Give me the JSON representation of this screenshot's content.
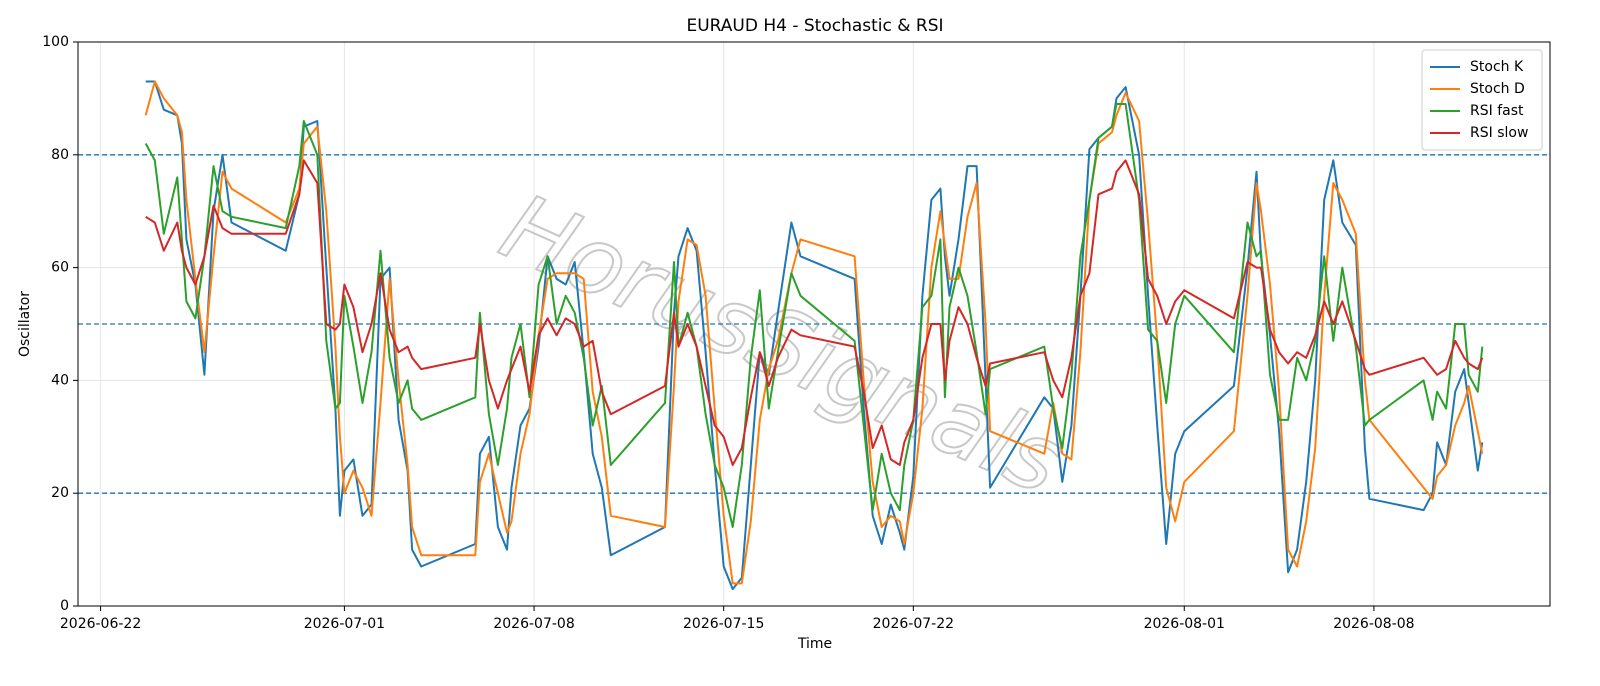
{
  "chart_data": {
    "type": "line",
    "title": "EURAUD H4 - Stochastic & RSI",
    "x_label": "Time",
    "y_label": "Oscillator",
    "watermark": "HorusSignals",
    "x": [
      "2026-06-23T16:00",
      "2026-06-24T00:00",
      "2026-06-24T08:00",
      "2026-06-24T20:00",
      "2026-06-25T00:00",
      "2026-06-25T04:00",
      "2026-06-25T12:00",
      "2026-06-25T20:00",
      "2026-06-26T04:00",
      "2026-06-26T12:00",
      "2026-06-26T20:00",
      "2026-06-28T20:00",
      "2026-06-29T08:00",
      "2026-06-29T12:00",
      "2026-06-30T00:00",
      "2026-06-30T08:00",
      "2026-06-30T16:00",
      "2026-06-30T20:00",
      "2026-07-01T00:00",
      "2026-07-01T08:00",
      "2026-07-01T16:00",
      "2026-07-02T00:00",
      "2026-07-02T08:00",
      "2026-07-02T16:00",
      "2026-07-03T00:00",
      "2026-07-03T08:00",
      "2026-07-03T12:00",
      "2026-07-03T20:00",
      "2026-07-05T20:00",
      "2026-07-06T00:00",
      "2026-07-06T08:00",
      "2026-07-06T16:00",
      "2026-07-07T00:00",
      "2026-07-07T04:00",
      "2026-07-07T12:00",
      "2026-07-07T20:00",
      "2026-07-08T04:00",
      "2026-07-08T12:00",
      "2026-07-08T20:00",
      "2026-07-09T04:00",
      "2026-07-09T12:00",
      "2026-07-09T20:00",
      "2026-07-10T04:00",
      "2026-07-10T12:00",
      "2026-07-10T20:00",
      "2026-07-12T20:00",
      "2026-07-13T04:00",
      "2026-07-13T08:00",
      "2026-07-13T16:00",
      "2026-07-14T00:00",
      "2026-07-14T08:00",
      "2026-07-14T16:00",
      "2026-07-15T00:00",
      "2026-07-15T08:00",
      "2026-07-15T16:00",
      "2026-07-16T00:00",
      "2026-07-16T08:00",
      "2026-07-16T16:00",
      "2026-07-17T00:00",
      "2026-07-17T12:00",
      "2026-07-17T20:00",
      "2026-07-19T20:00",
      "2026-07-20T04:00",
      "2026-07-20T12:00",
      "2026-07-20T20:00",
      "2026-07-21T04:00",
      "2026-07-21T12:00",
      "2026-07-21T16:00",
      "2026-07-22T00:00",
      "2026-07-22T08:00",
      "2026-07-22T16:00",
      "2026-07-23T00:00",
      "2026-07-23T04:00",
      "2026-07-23T08:00",
      "2026-07-23T16:00",
      "2026-07-24T00:00",
      "2026-07-24T08:00",
      "2026-07-24T16:00",
      "2026-07-24T20:00",
      "2026-07-26T20:00",
      "2026-07-27T04:00",
      "2026-07-27T12:00",
      "2026-07-27T20:00",
      "2026-07-28T04:00",
      "2026-07-28T12:00",
      "2026-07-28T20:00",
      "2026-07-29T08:00",
      "2026-07-29T12:00",
      "2026-07-29T20:00",
      "2026-07-30T08:00",
      "2026-07-30T16:00",
      "2026-07-31T00:00",
      "2026-07-31T08:00",
      "2026-07-31T16:00",
      "2026-08-01T00:00",
      "2026-08-02T20:00",
      "2026-08-03T08:00",
      "2026-08-03T16:00",
      "2026-08-03T20:00",
      "2026-08-04T04:00",
      "2026-08-04T12:00",
      "2026-08-04T20:00",
      "2026-08-05T04:00",
      "2026-08-05T12:00",
      "2026-08-05T20:00",
      "2026-08-06T04:00",
      "2026-08-06T12:00",
      "2026-08-06T20:00",
      "2026-08-07T08:00",
      "2026-08-07T16:00",
      "2026-08-07T20:00",
      "2026-08-09T20:00",
      "2026-08-10T04:00",
      "2026-08-10T08:00",
      "2026-08-10T16:00",
      "2026-08-11T00:00",
      "2026-08-11T08:00",
      "2026-08-11T12:00",
      "2026-08-11T20:00",
      "2026-08-12T00:00"
    ],
    "series": [
      {
        "name": "Stoch K",
        "color": "#1f77b4",
        "values": [
          93,
          93,
          88,
          87,
          82,
          65,
          57,
          41,
          70,
          80,
          68,
          63,
          73,
          85,
          86,
          60,
          35,
          16,
          24,
          26,
          16,
          18,
          58,
          60,
          33,
          24,
          10,
          7,
          11,
          27,
          30,
          14,
          10,
          21,
          32,
          35,
          46,
          62,
          58,
          57,
          61,
          45,
          27,
          21,
          9,
          14,
          52,
          62,
          67,
          63,
          45,
          25,
          7,
          3,
          5,
          25,
          45,
          41,
          52,
          68,
          62,
          58,
          35,
          16,
          11,
          18,
          13,
          10,
          23,
          55,
          72,
          74,
          62,
          55,
          65,
          78,
          78,
          40,
          21,
          37,
          35,
          22,
          32,
          55,
          81,
          83,
          85,
          90,
          92,
          80,
          55,
          32,
          11,
          27,
          31,
          39,
          60,
          77,
          62,
          48,
          31,
          6,
          10,
          22,
          40,
          72,
          79,
          68,
          64,
          28,
          19,
          17,
          20,
          29,
          25,
          38,
          42,
          36,
          24,
          29
        ]
      },
      {
        "name": "Stoch D",
        "color": "#ff7f0e",
        "values": [
          87,
          93,
          90,
          87,
          84,
          72,
          58,
          45,
          62,
          77,
          74,
          68,
          74,
          82,
          85,
          70,
          46,
          30,
          20,
          24,
          21,
          16,
          36,
          58,
          40,
          25,
          14,
          9,
          9,
          22,
          27,
          20,
          13,
          15,
          27,
          34,
          48,
          58,
          59,
          59,
          59,
          58,
          38,
          30,
          16,
          14,
          39,
          54,
          65,
          64,
          55,
          35,
          16,
          4,
          4,
          15,
          33,
          42,
          47,
          59,
          65,
          62,
          40,
          22,
          14,
          16,
          15,
          11,
          20,
          35,
          60,
          70,
          64,
          58,
          58,
          69,
          75,
          50,
          31,
          27,
          36,
          27,
          26,
          45,
          72,
          82,
          84,
          87,
          91,
          86,
          68,
          47,
          21,
          15,
          22,
          31,
          55,
          75,
          70,
          57,
          38,
          10,
          7,
          15,
          28,
          55,
          75,
          72,
          66,
          40,
          33,
          21,
          19,
          23,
          25,
          32,
          36,
          39,
          31,
          27
        ]
      },
      {
        "name": "RSI fast",
        "color": "#2ca02c",
        "values": [
          82,
          79,
          66,
          76,
          65,
          54,
          51,
          62,
          78,
          70,
          69,
          67,
          78,
          86,
          80,
          47,
          35,
          36,
          55,
          46,
          36,
          45,
          63,
          44,
          36,
          40,
          35,
          33,
          37,
          52,
          34,
          25,
          35,
          44,
          50,
          37,
          57,
          62,
          50,
          55,
          52,
          44,
          32,
          39,
          25,
          36,
          61,
          46,
          52,
          46,
          34,
          25,
          21,
          14,
          25,
          44,
          56,
          35,
          45,
          59,
          55,
          47,
          32,
          17,
          27,
          20,
          17,
          25,
          33,
          53,
          55,
          65,
          37,
          53,
          60,
          55,
          45,
          34,
          42,
          46,
          35,
          28,
          41,
          62,
          72,
          83,
          85,
          89,
          89,
          72,
          49,
          47,
          36,
          50,
          55,
          45,
          68,
          62,
          63,
          41,
          33,
          33,
          44,
          40,
          47,
          62,
          47,
          60,
          46,
          32,
          33,
          40,
          33,
          38,
          35,
          50,
          50,
          41,
          38,
          46
        ]
      },
      {
        "name": "RSI slow",
        "color": "#d62728",
        "values": [
          69,
          68,
          63,
          68,
          63,
          60,
          57,
          62,
          71,
          67,
          66,
          66,
          73,
          79,
          75,
          50,
          49,
          50,
          57,
          53,
          45,
          50,
          59,
          49,
          45,
          46,
          44,
          42,
          44,
          50,
          40,
          35,
          40,
          42,
          46,
          38,
          48,
          51,
          48,
          51,
          50,
          46,
          47,
          38,
          34,
          39,
          52,
          46,
          50,
          46,
          39,
          32,
          30,
          25,
          28,
          37,
          45,
          39,
          44,
          49,
          48,
          46,
          38,
          28,
          32,
          26,
          25,
          29,
          33,
          44,
          50,
          50,
          40,
          47,
          53,
          50,
          44,
          39,
          43,
          45,
          40,
          37,
          44,
          55,
          59,
          73,
          74,
          77,
          79,
          73,
          58,
          55,
          50,
          54,
          56,
          51,
          61,
          60,
          60,
          49,
          45,
          43,
          45,
          44,
          48,
          54,
          50,
          54,
          47,
          42,
          41,
          44,
          42,
          41,
          42,
          47,
          44,
          43,
          42,
          44
        ]
      }
    ],
    "xticks": [
      "2026-06-22",
      "2026-07-01",
      "2026-07-08",
      "2026-07-15",
      "2026-07-22",
      "2026-08-01",
      "2026-08-08"
    ],
    "xlim": [
      "2026-06-21T04:00",
      "2026-08-14T12:00"
    ],
    "ylim": [
      0,
      100
    ],
    "yticks": [
      0,
      20,
      40,
      60,
      80,
      100
    ],
    "hlines": [
      20,
      50,
      80
    ],
    "hline_color": "#1f77b4",
    "grid": true,
    "legend": "upper right"
  }
}
